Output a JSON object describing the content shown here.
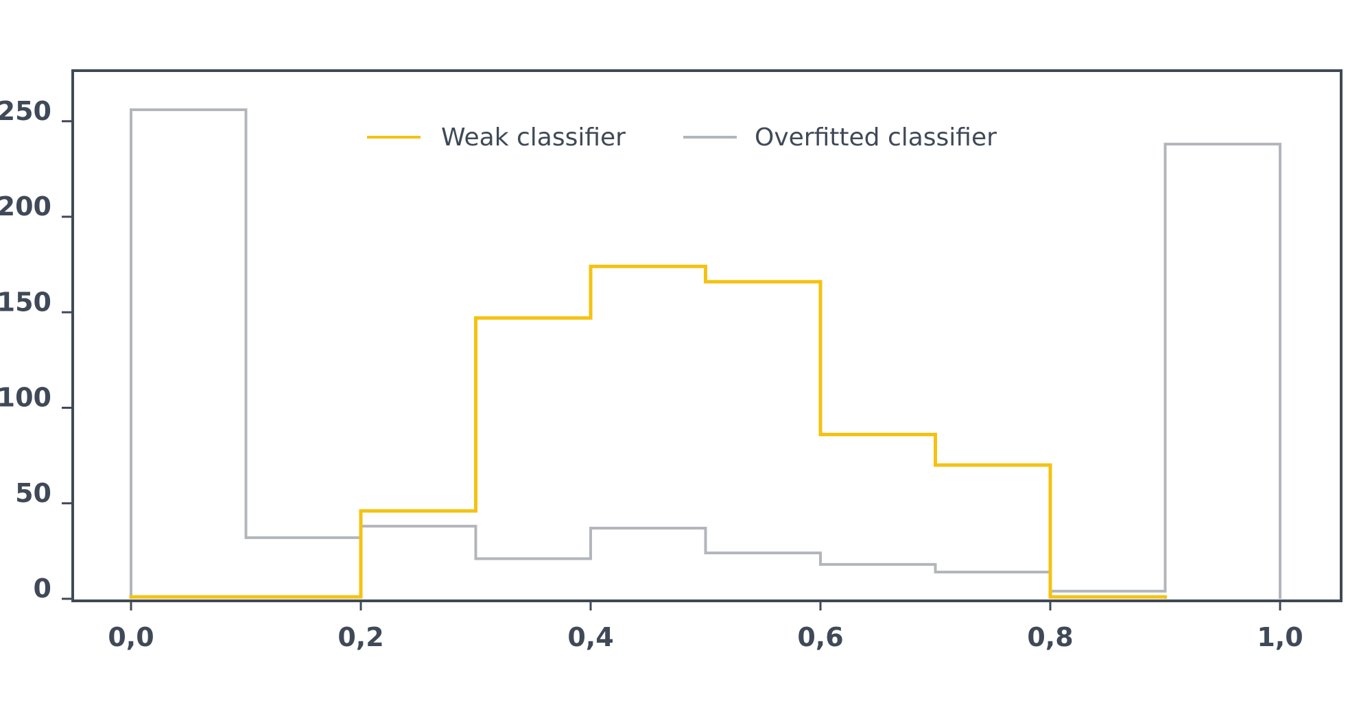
{
  "chart_data": {
    "type": "histogram",
    "title": "",
    "xlabel": "",
    "ylabel": "",
    "xlim": [
      0.0,
      1.0
    ],
    "ylim": [
      0,
      270
    ],
    "x_ticks": [
      0.0,
      0.2,
      0.4,
      0.6,
      0.8,
      1.0
    ],
    "x_tick_labels": [
      "0,0",
      "0,2",
      "0,4",
      "0,6",
      "0,8",
      "1,0"
    ],
    "y_ticks": [
      0,
      50,
      100,
      150,
      200,
      250
    ],
    "y_tick_labels": [
      "0",
      "50",
      "100",
      "150",
      "200",
      "250"
    ],
    "bin_edges": [
      0.0,
      0.1,
      0.2,
      0.3,
      0.4,
      0.5,
      0.6,
      0.7,
      0.8,
      0.9,
      1.0
    ],
    "grid": false,
    "legend_position": "top-center",
    "series": [
      {
        "name": "Weak classifier",
        "color": "#f5c211",
        "values": [
          1,
          1,
          46,
          147,
          174,
          166,
          86,
          70,
          1,
          null
        ]
      },
      {
        "name": "Overfitted classifier",
        "color": "#b2b6bb",
        "values": [
          256,
          32,
          38,
          21,
          37,
          24,
          18,
          14,
          4,
          238
        ]
      }
    ]
  }
}
